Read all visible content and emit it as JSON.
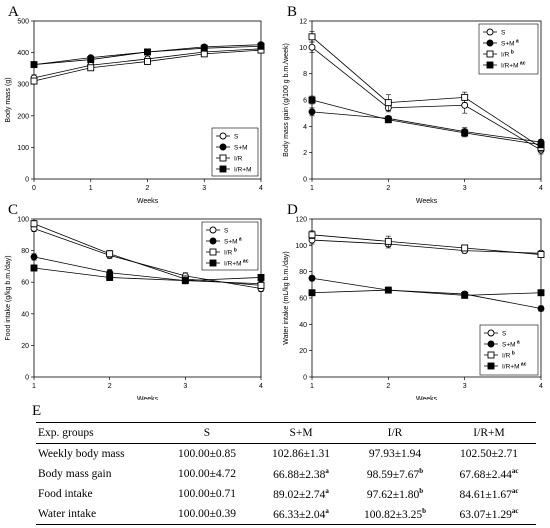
{
  "chart_data": [
    {
      "panel": "A",
      "type": "line",
      "xlabel": "Weeks",
      "ylabel": "Body mass (g)",
      "xlim": [
        0,
        4
      ],
      "ylim": [
        0,
        500
      ],
      "xticks": [
        0,
        1,
        2,
        3,
        4
      ],
      "yticks": [
        0,
        100,
        200,
        300,
        400,
        500
      ],
      "x": [
        0,
        1,
        2,
        3,
        4
      ],
      "legend_position": "bottom-right",
      "series": [
        {
          "name": "S",
          "marker": "open-circle",
          "values": [
            320,
            360,
            380,
            402,
            412
          ],
          "err": [
            10,
            8,
            8,
            8,
            8
          ]
        },
        {
          "name": "S+M",
          "marker": "filled-circle",
          "values": [
            362,
            384,
            402,
            418,
            425
          ],
          "err": [
            6,
            6,
            6,
            6,
            6
          ]
        },
        {
          "name": "I/R",
          "marker": "open-square",
          "values": [
            310,
            352,
            372,
            396,
            408
          ],
          "err": [
            8,
            8,
            8,
            8,
            8
          ]
        },
        {
          "name": "I/R+M",
          "marker": "filled-square",
          "values": [
            362,
            378,
            402,
            414,
            420
          ],
          "err": [
            6,
            6,
            6,
            6,
            6
          ]
        }
      ]
    },
    {
      "panel": "B",
      "type": "line",
      "xlabel": "Weeks",
      "ylabel": "Body mass gain (g/100 g b.m./week)",
      "xlim": [
        1,
        4
      ],
      "ylim": [
        0,
        12
      ],
      "xticks": [
        1,
        2,
        3,
        4
      ],
      "yticks": [
        0,
        2,
        4,
        6,
        8,
        10,
        12
      ],
      "x": [
        1,
        2,
        3,
        4
      ],
      "legend_position": "top-right",
      "series": [
        {
          "name": "S",
          "sup": "",
          "marker": "open-circle",
          "values": [
            10.0,
            5.4,
            5.6,
            2.2
          ],
          "err": [
            0.4,
            0.3,
            0.6,
            0.3
          ]
        },
        {
          "name": "S+M",
          "sup": "a",
          "marker": "filled-circle",
          "values": [
            5.1,
            4.6,
            3.6,
            2.8
          ],
          "err": [
            0.3,
            0.2,
            0.3,
            0.2
          ]
        },
        {
          "name": "I/R",
          "sup": "b",
          "marker": "open-square",
          "values": [
            10.8,
            5.8,
            6.2,
            2.4
          ],
          "err": [
            0.4,
            0.6,
            0.4,
            0.3
          ]
        },
        {
          "name": "I/R+M",
          "sup": "ac",
          "marker": "filled-square",
          "values": [
            6.0,
            4.5,
            3.5,
            2.6
          ],
          "err": [
            0.3,
            0.2,
            0.3,
            0.2
          ]
        }
      ]
    },
    {
      "panel": "C",
      "type": "line",
      "xlabel": "Weeks",
      "ylabel": "Food intake (g/kg b.m./day)",
      "xlim": [
        1,
        4
      ],
      "ylim": [
        0,
        100
      ],
      "xticks": [
        1,
        2,
        3,
        4
      ],
      "yticks": [
        0,
        20,
        40,
        60,
        80,
        100
      ],
      "x": [
        1,
        2,
        3,
        4
      ],
      "legend_position": "top-right",
      "series": [
        {
          "name": "S",
          "sup": "",
          "marker": "open-circle",
          "values": [
            94,
            77,
            64,
            56
          ],
          "err": [
            2,
            2,
            2,
            2
          ]
        },
        {
          "name": "S+M",
          "sup": "a",
          "marker": "filled-circle",
          "values": [
            76,
            66,
            61,
            59
          ],
          "err": [
            2,
            2,
            2,
            2
          ]
        },
        {
          "name": "I/R",
          "sup": "b",
          "marker": "open-square",
          "values": [
            97,
            78,
            62,
            58
          ],
          "err": [
            2,
            2,
            2,
            2
          ]
        },
        {
          "name": "I/R+M",
          "sup": "ac",
          "marker": "filled-square",
          "values": [
            69,
            63,
            61,
            63
          ],
          "err": [
            2,
            2,
            2,
            2
          ]
        }
      ]
    },
    {
      "panel": "D",
      "type": "line",
      "xlabel": "Weeks",
      "ylabel": "Water intake (mL/kg b.m./day)",
      "xlim": [
        1,
        4
      ],
      "ylim": [
        0,
        120
      ],
      "xticks": [
        1,
        2,
        3,
        4
      ],
      "yticks": [
        0,
        20,
        40,
        60,
        80,
        100,
        120
      ],
      "x": [
        1,
        2,
        3,
        4
      ],
      "legend_position": "bottom-right",
      "series": [
        {
          "name": "S",
          "sup": "",
          "marker": "open-circle",
          "values": [
            104,
            101,
            96,
            94
          ],
          "err": [
            3,
            3,
            2,
            2
          ]
        },
        {
          "name": "S+M",
          "sup": "a",
          "marker": "filled-circle",
          "values": [
            75,
            66,
            63,
            52
          ],
          "err": [
            2,
            2,
            2,
            2
          ]
        },
        {
          "name": "I/R",
          "sup": "b",
          "marker": "open-square",
          "values": [
            108,
            103,
            98,
            93
          ],
          "err": [
            3,
            4,
            2,
            2
          ]
        },
        {
          "name": "I/R+M",
          "sup": "ac",
          "marker": "filled-square",
          "values": [
            64,
            66,
            62,
            64
          ],
          "err": [
            2,
            2,
            2,
            2
          ]
        }
      ]
    },
    {
      "panel": "E",
      "type": "table",
      "columns": [
        "Exp. groups",
        "S",
        "S+M",
        "I/R",
        "I/R+M"
      ],
      "rows": [
        {
          "label": "Weekly body mass",
          "cells": [
            {
              "v": "100.00±0.85",
              "s": ""
            },
            {
              "v": "102.86±1.31",
              "s": ""
            },
            {
              "v": "97.93±1.94",
              "s": ""
            },
            {
              "v": "102.50±2.71",
              "s": ""
            }
          ]
        },
        {
          "label": "Body mass gain",
          "cells": [
            {
              "v": "100.00±4.72",
              "s": ""
            },
            {
              "v": "66.88±2.38",
              "s": "a"
            },
            {
              "v": "98.59±7.67",
              "s": "b"
            },
            {
              "v": "67.68±2.44",
              "s": "ac"
            }
          ]
        },
        {
          "label": "Food intake",
          "cells": [
            {
              "v": "100.00±0.71",
              "s": ""
            },
            {
              "v": "89.02±2.74",
              "s": "a"
            },
            {
              "v": "97.62±1.80",
              "s": "b"
            },
            {
              "v": "84.61±1.67",
              "s": "ac"
            }
          ]
        },
        {
          "label": "Water intake",
          "cells": [
            {
              "v": "100.00±0.39",
              "s": ""
            },
            {
              "v": "66.33±2.04",
              "s": "a"
            },
            {
              "v": "100.82±3.25",
              "s": "b"
            },
            {
              "v": "63.07±1.29",
              "s": "ac"
            }
          ]
        }
      ]
    }
  ]
}
